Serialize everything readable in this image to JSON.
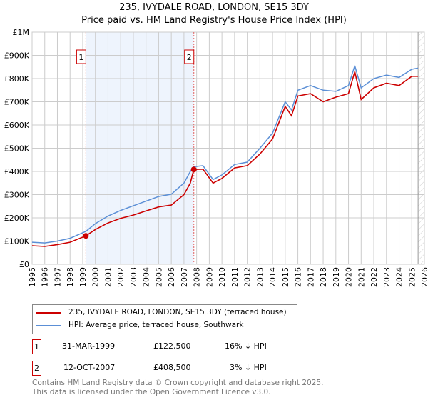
{
  "title": "235, IVYDALE ROAD, LONDON, SE15 3DY",
  "subtitle": "Price paid vs. HM Land Registry's House Price Index (HPI)",
  "chart_data": {
    "type": "line",
    "title": "235, IVYDALE ROAD, LONDON, SE15 3DY",
    "subtitle": "Price paid vs. HM Land Registry's House Price Index (HPI)",
    "xlim": [
      1995,
      2026
    ],
    "ylim": [
      0,
      1000000
    ],
    "x_ticks": [
      "1995",
      "1996",
      "1997",
      "1998",
      "1999",
      "2000",
      "2001",
      "2002",
      "2003",
      "2004",
      "2005",
      "2006",
      "2007",
      "2008",
      "2009",
      "2010",
      "2011",
      "2012",
      "2013",
      "2014",
      "2015",
      "2016",
      "2017",
      "2018",
      "2019",
      "2020",
      "2021",
      "2022",
      "2023",
      "2024",
      "2025",
      "2026"
    ],
    "y_ticks": [
      "£0",
      "£100K",
      "£200K",
      "£300K",
      "£400K",
      "£500K",
      "£600K",
      "£700K",
      "£800K",
      "£900K",
      "£1M"
    ],
    "series": [
      {
        "name": "235, IVYDALE ROAD, LONDON, SE15 3DY (terraced house)",
        "color": "#cc0000",
        "x": [
          1995,
          1996,
          1997,
          1998,
          1999.25,
          2000,
          2001,
          2002,
          2003,
          2004,
          2005,
          2006,
          2007,
          2007.5,
          2007.78,
          2008.5,
          2009.3,
          2010,
          2011,
          2012,
          2013,
          2014,
          2015,
          2015.5,
          2016,
          2017,
          2018,
          2019,
          2020,
          2020.5,
          2021,
          2022,
          2023,
          2024,
          2025,
          2025.5
        ],
        "y": [
          80000,
          77000,
          85000,
          95000,
          122500,
          150000,
          178000,
          198000,
          212000,
          230000,
          247000,
          255000,
          300000,
          350000,
          408500,
          410000,
          350000,
          370000,
          415000,
          425000,
          475000,
          540000,
          680000,
          640000,
          725000,
          735000,
          700000,
          720000,
          735000,
          830000,
          710000,
          760000,
          780000,
          770000,
          810000,
          810000
        ]
      },
      {
        "name": "HPI: Average price, terraced house, Southwark",
        "color": "#5b8fd6",
        "x": [
          1995,
          1996,
          1997,
          1998,
          1999.25,
          2000,
          2001,
          2002,
          2003,
          2004,
          2005,
          2006,
          2007,
          2007.5,
          2007.78,
          2008.5,
          2009.3,
          2010,
          2011,
          2012,
          2013,
          2014,
          2015,
          2015.5,
          2016,
          2017,
          2018,
          2019,
          2020,
          2020.5,
          2021,
          2022,
          2023,
          2024,
          2025,
          2025.5
        ],
        "y": [
          95000,
          92000,
          100000,
          112000,
          142000,
          175000,
          208000,
          232000,
          252000,
          272000,
          292000,
          302000,
          350000,
          400000,
          420000,
          425000,
          365000,
          385000,
          430000,
          440000,
          500000,
          565000,
          700000,
          665000,
          750000,
          770000,
          750000,
          745000,
          770000,
          855000,
          760000,
          800000,
          815000,
          805000,
          840000,
          845000
        ]
      }
    ],
    "annotations": [
      {
        "label": "1",
        "x": 1999.25
      },
      {
        "label": "2",
        "x": 2007.78
      }
    ],
    "shaded_range": [
      1999.25,
      2007.78
    ],
    "hatched_from": 2025.5
  },
  "legend": {
    "property": "235, IVYDALE ROAD, LONDON, SE15 3DY (terraced house)",
    "hpi": "HPI: Average price, terraced house, Southwark"
  },
  "sales": [
    {
      "num": "1",
      "date": "31-MAR-1999",
      "price": "£122,500",
      "delta": "16% ↓ HPI"
    },
    {
      "num": "2",
      "date": "12-OCT-2007",
      "price": "£408,500",
      "delta": "3% ↓ HPI"
    }
  ],
  "footer": [
    "Contains HM Land Registry data © Crown copyright and database right 2025.",
    "This data is licensed under the Open Government Licence v3.0."
  ]
}
